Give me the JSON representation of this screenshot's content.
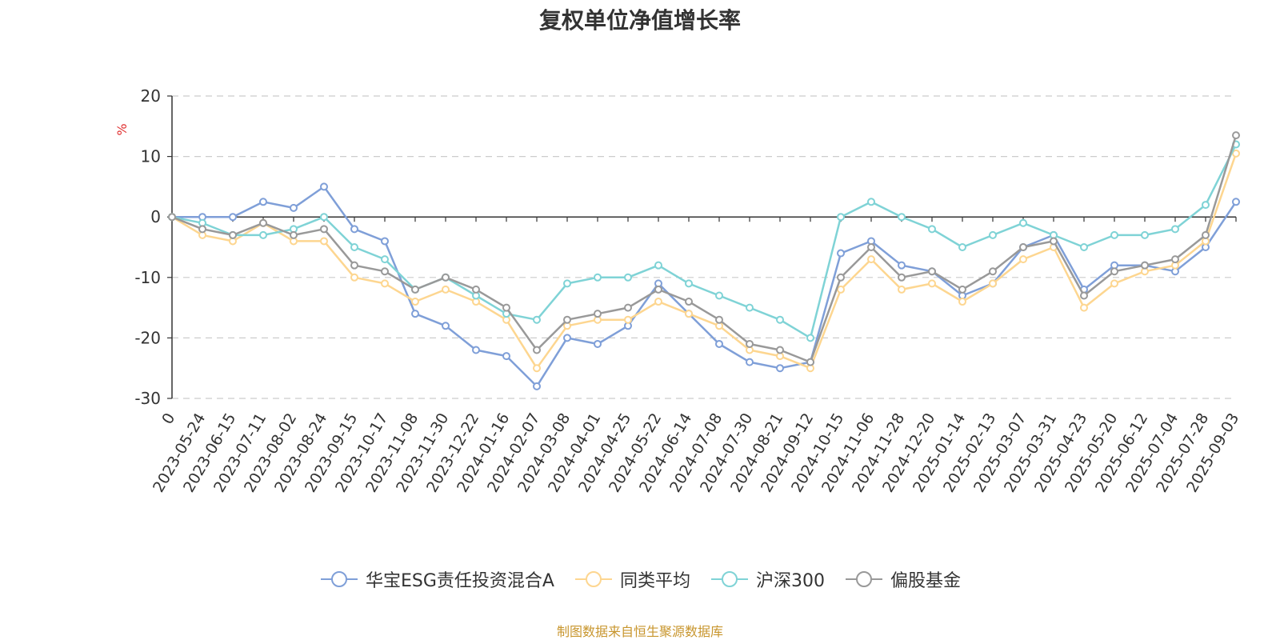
{
  "chart_data": {
    "type": "line",
    "title": "复权单位净值增长率",
    "ylabel": "%",
    "ylim": [
      -30,
      20
    ],
    "yticks": [
      20,
      10,
      0,
      -10,
      -20,
      -30
    ],
    "y_grid": true,
    "legend_position": "bottom-center",
    "x_tick_labels": [
      "0",
      "2023-05-24",
      "2023-06-15",
      "2023-07-11",
      "2023-08-02",
      "2023-08-24",
      "2023-09-15",
      "2023-10-17",
      "2023-11-08",
      "2023-11-30",
      "2023-12-22",
      "2024-01-16",
      "2024-02-07",
      "2024-03-08",
      "2024-04-01",
      "2024-04-25",
      "2024-05-22",
      "2024-06-14",
      "2024-07-08",
      "2024-07-30",
      "2024-08-21",
      "2024-09-12",
      "2024-10-15",
      "2024-11-06",
      "2024-11-28",
      "2024-12-20",
      "2025-01-14",
      "2025-02-13",
      "2025-03-07",
      "2025-03-31",
      "2025-04-23",
      "2025-05-20",
      "2025-06-12",
      "2025-07-04",
      "2025-07-28",
      "2025-09-03"
    ],
    "series": [
      {
        "name": "华宝ESG责任投资混合A",
        "color": "#7f9fd8",
        "values": [
          0,
          0,
          0,
          2.5,
          1.5,
          5,
          -2,
          -4,
          -16,
          -18,
          -22,
          -23,
          -28,
          -20,
          -21,
          -18,
          -11,
          -16,
          -21,
          -24,
          -25,
          -24,
          -6,
          -4,
          -8,
          -9,
          -13,
          -11,
          -5,
          -3,
          -12,
          -8,
          -8,
          -9,
          -5,
          2.5
        ]
      },
      {
        "name": "同类平均",
        "color": "#fdd690",
        "values": [
          0,
          -3,
          -4,
          -1,
          -4,
          -4,
          -10,
          -11,
          -14,
          -12,
          -14,
          -17,
          -25,
          -18,
          -17,
          -17,
          -14,
          -16,
          -18,
          -22,
          -23,
          -25,
          -12,
          -7,
          -12,
          -11,
          -14,
          -11,
          -7,
          -5,
          -15,
          -11,
          -9,
          -8,
          -4,
          10.5
        ]
      },
      {
        "name": "沪深300",
        "color": "#7fd3d6",
        "values": [
          0,
          -1,
          -3,
          -3,
          -2,
          0,
          -5,
          -7,
          -12,
          -10,
          -13,
          -16,
          -17,
          -11,
          -10,
          -10,
          -8,
          -11,
          -13,
          -15,
          -17,
          -20,
          0,
          2.5,
          0,
          -2,
          -5,
          -3,
          -1,
          -3,
          -5,
          -3,
          -3,
          -2,
          2,
          12
        ]
      },
      {
        "name": "偏股基金",
        "color": "#999999",
        "values": [
          0,
          -2,
          -3,
          -1,
          -3,
          -2,
          -8,
          -9,
          -12,
          -10,
          -12,
          -15,
          -22,
          -17,
          -16,
          -15,
          -12,
          -14,
          -17,
          -21,
          -22,
          -24,
          -10,
          -5,
          -10,
          -9,
          -12,
          -9,
          -5,
          -4,
          -13,
          -9,
          -8,
          -7,
          -3,
          13.5
        ]
      }
    ]
  },
  "footer": {
    "source_text": "制图数据来自恒生聚源数据库"
  }
}
